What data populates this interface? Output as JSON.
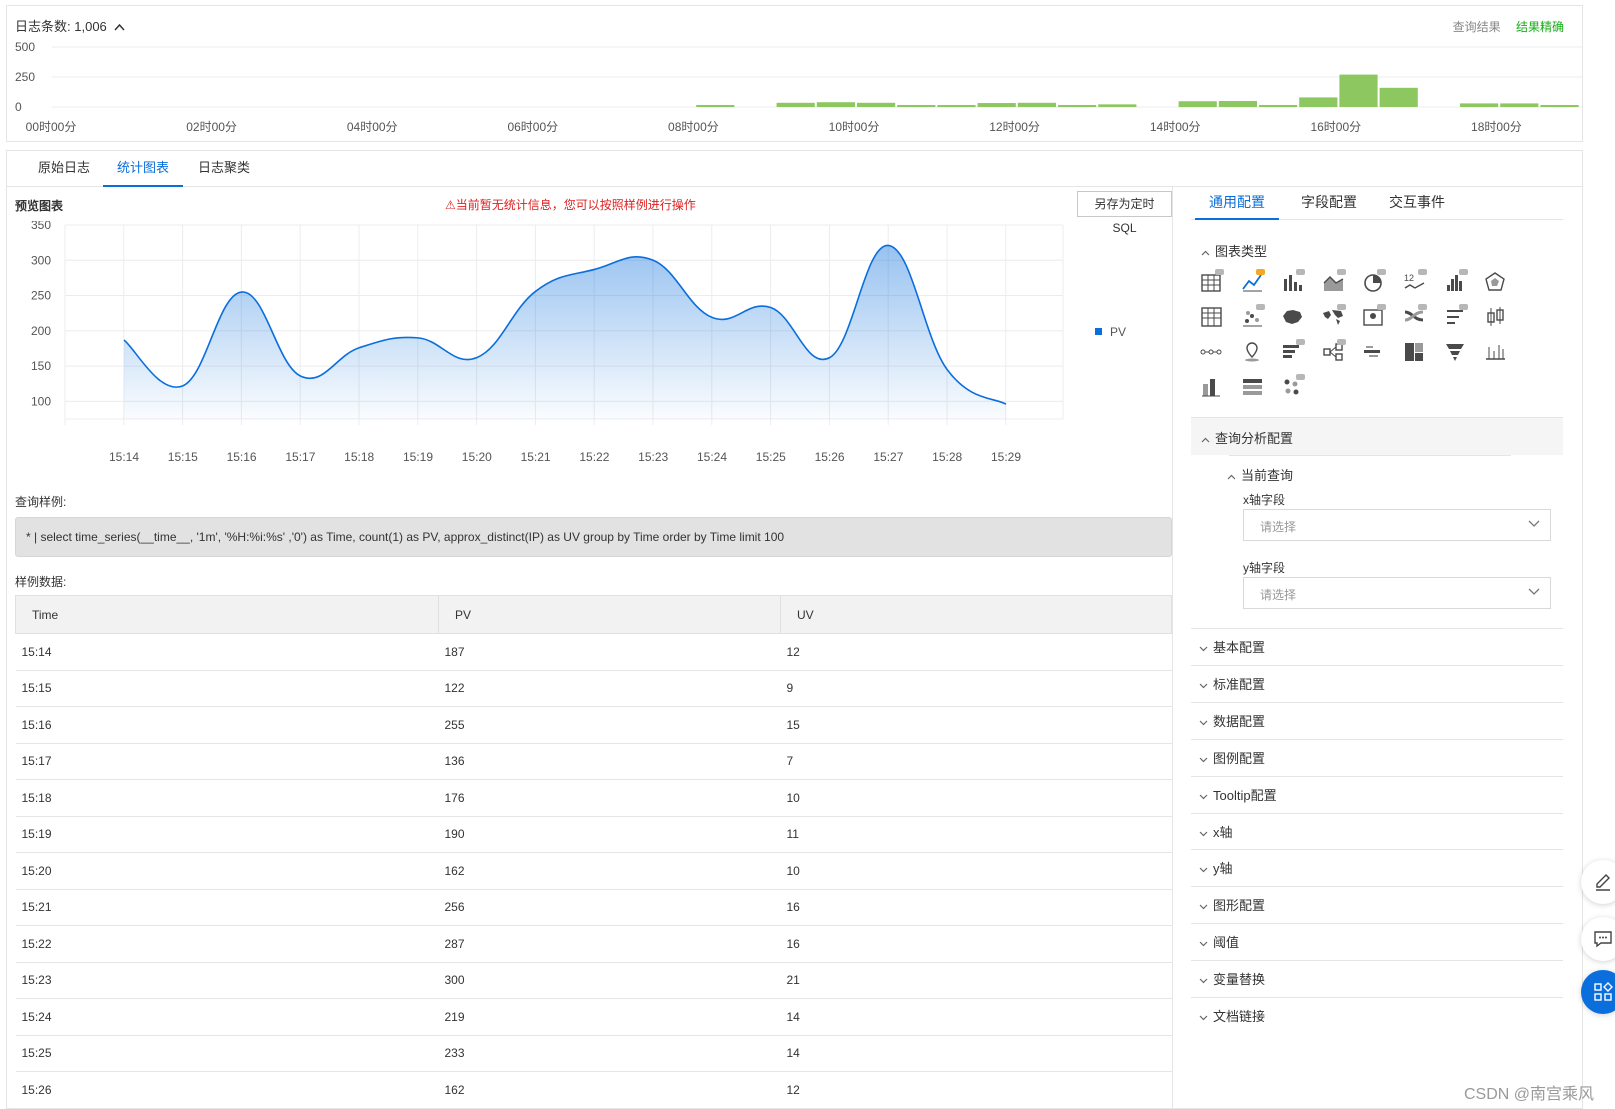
{
  "histogram": {
    "title_prefix": "日志条数:",
    "count": "1,006",
    "caret": "^",
    "query_result_label": "查询结果",
    "result_status": "结果精确",
    "color": "#8dc760",
    "y_ticks": [
      "500",
      "250",
      "0"
    ],
    "x_ticks": [
      "00时00分",
      "02时00分",
      "04时00分",
      "06时00分",
      "08时00分",
      "10时00分",
      "12时00分",
      "14时00分",
      "16时00分",
      "18时00分"
    ],
    "bars": [
      {
        "slot": 16,
        "value": 12
      },
      {
        "slot": 18,
        "value": 35
      },
      {
        "slot": 19,
        "value": 40
      },
      {
        "slot": 20,
        "value": 35
      },
      {
        "slot": 21,
        "value": 15
      },
      {
        "slot": 22,
        "value": 15
      },
      {
        "slot": 23,
        "value": 33
      },
      {
        "slot": 24,
        "value": 35
      },
      {
        "slot": 25,
        "value": 15
      },
      {
        "slot": 26,
        "value": 22
      },
      {
        "slot": 28,
        "value": 48
      },
      {
        "slot": 29,
        "value": 50
      },
      {
        "slot": 30,
        "value": 15
      },
      {
        "slot": 31,
        "value": 80
      },
      {
        "slot": 32,
        "value": 270
      },
      {
        "slot": 33,
        "value": 160
      },
      {
        "slot": 35,
        "value": 30
      },
      {
        "slot": 36,
        "value": 30
      },
      {
        "slot": 37,
        "value": 15
      }
    ]
  },
  "tabs": [
    "原始日志",
    "统计图表",
    "日志聚类"
  ],
  "active_tab": "统计图表",
  "preview": {
    "title": "预览图表",
    "warning": "⚠当前暂无统计信息，您可以按照样例进行操作",
    "save_button": "另存为定时SQL"
  },
  "chart_data": {
    "type": "area",
    "title": "",
    "xlabel": "",
    "ylabel": "",
    "categories": [
      "15:14",
      "15:15",
      "15:16",
      "15:17",
      "15:18",
      "15:19",
      "15:20",
      "15:21",
      "15:22",
      "15:23",
      "15:24",
      "15:25",
      "15:26",
      "15:27",
      "15:28",
      "15:29"
    ],
    "series": [
      {
        "name": "PV",
        "values": [
          187,
          122,
          255,
          136,
          176,
          190,
          162,
          256,
          287,
          300,
          219,
          233,
          162,
          321,
          145,
          96
        ],
        "color": "#0a6edc"
      }
    ],
    "y_ticks": [
      350,
      300,
      250,
      200,
      150,
      100
    ],
    "ylim": [
      75,
      350
    ],
    "grid": true,
    "legend": "right"
  },
  "sample": {
    "query_label": "查询样例:",
    "query": "* | select time_series(__time__, '1m', '%H:%i:%s' ,'0') as Time, count(1) as PV, approx_distinct(IP) as UV group by Time order by Time limit 100",
    "data_label": "样例数据:",
    "columns": [
      "Time",
      "PV",
      "UV"
    ],
    "rows": [
      [
        "15:14",
        "187",
        "12"
      ],
      [
        "15:15",
        "122",
        "9"
      ],
      [
        "15:16",
        "255",
        "15"
      ],
      [
        "15:17",
        "136",
        "7"
      ],
      [
        "15:18",
        "176",
        "10"
      ],
      [
        "15:19",
        "190",
        "11"
      ],
      [
        "15:20",
        "162",
        "10"
      ],
      [
        "15:21",
        "256",
        "16"
      ],
      [
        "15:22",
        "287",
        "16"
      ],
      [
        "15:23",
        "300",
        "21"
      ],
      [
        "15:24",
        "219",
        "14"
      ],
      [
        "15:25",
        "233",
        "14"
      ],
      [
        "15:26",
        "162",
        "12"
      ]
    ]
  },
  "config": {
    "tabs": [
      "通用配置",
      "字段配置",
      "交互事件"
    ],
    "active_tab": "通用配置",
    "chart_type_section": "图表类型",
    "chart_type_icons": [
      "table-pro-icon",
      "line-pro-icon",
      "bar-pro-icon",
      "area-pro-icon",
      "pie-pro-icon",
      "single-value-pro-icon",
      "histogram-pro-icon",
      "radar-icon",
      "table-icon",
      "scatter-pro-icon",
      "china-map-icon",
      "world-map-pro-icon",
      "amap-pro-icon",
      "sankey-pro-icon",
      "progress-bar-pro-icon",
      "box-plot-icon",
      "flow-chart-icon",
      "location-map-icon",
      "bar-list-pro-icon",
      "topology-pro-icon",
      "word-cloud-icon",
      "treemap-icon",
      "funnel-icon",
      "timeline-icon",
      "column-chart-icon",
      "cross-table-icon",
      "dot-matrix-pro-icon"
    ],
    "query_section": "查询分析配置",
    "current_query": "当前查询",
    "x_field_label": "x轴字段",
    "y_field_label": "y轴字段",
    "select_placeholder": "请选择",
    "sections": [
      "基本配置",
      "标准配置",
      "数据配置",
      "图例配置",
      "Tooltip配置",
      "x轴",
      "y轴",
      "图形配置",
      "阈值",
      "变量替换",
      "文档链接"
    ]
  },
  "float_tools": [
    "edit-icon",
    "feedback-icon",
    "apps-icon"
  ],
  "watermark": "CSDN @南宫乘风"
}
